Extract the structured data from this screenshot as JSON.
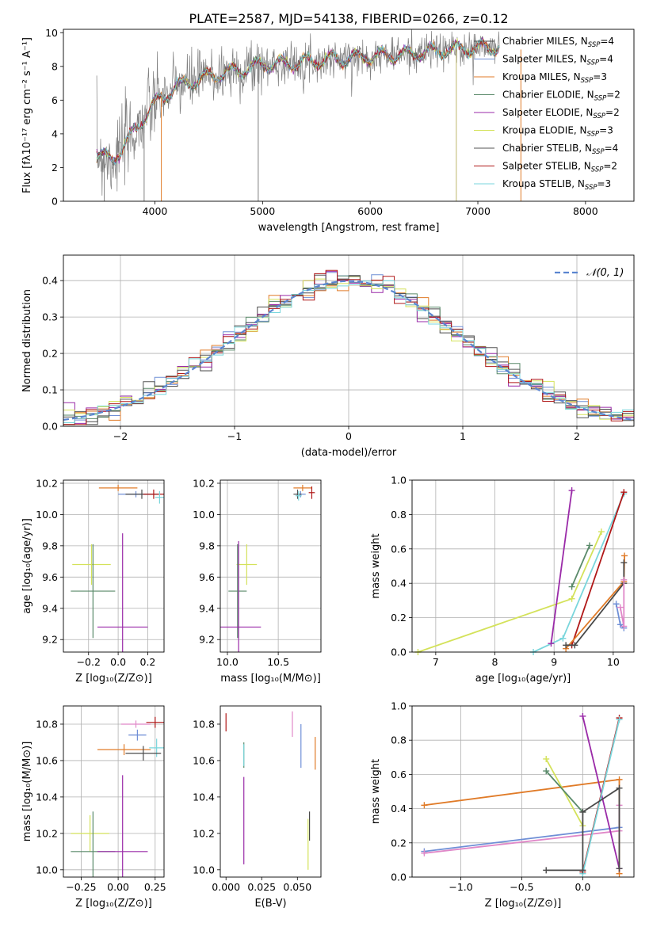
{
  "figure": {
    "title": "PLATE=2587, MJD=54138, FIBERID=0266, z=0.12"
  },
  "models": [
    {
      "key": "CM",
      "name": "Chabrier MILES, N_SSP=4",
      "label_main": "Chabrier MILES, N",
      "label_sub": "SSP",
      "label_end": "=4",
      "color": "#4a4a4a"
    },
    {
      "key": "SM",
      "name": "Salpeter MILES, N_SSP=4",
      "label_main": "Salpeter MILES, N",
      "label_sub": "SSP",
      "label_end": "=4",
      "color": "#6f8fd6"
    },
    {
      "key": "KM",
      "name": "Kroupa MILES, N_SSP=3",
      "label_main": "Kroupa MILES, N",
      "label_sub": "SSP",
      "label_end": "=3",
      "color": "#e07b28"
    },
    {
      "key": "CE",
      "name": "Chabrier ELODIE, N_SSP=2",
      "label_main": "Chabrier ELODIE, N",
      "label_sub": "SSP",
      "label_end": "=2",
      "color": "#5a8a6a"
    },
    {
      "key": "SE",
      "name": "Salpeter ELODIE, N_SSP=2",
      "label_main": "Salpeter ELODIE, N",
      "label_sub": "SSP",
      "label_end": "=2",
      "color": "#9a2aa8"
    },
    {
      "key": "KE",
      "name": "Kroupa ELODIE, N_SSP=3",
      "label_main": "Kroupa ELODIE, N",
      "label_sub": "SSP",
      "label_end": "=3",
      "color": "#d4e25a"
    },
    {
      "key": "CS",
      "name": "Chabrier STELIB, N_SSP=4",
      "label_main": "Chabrier STELIB, N",
      "label_sub": "SSP",
      "label_end": "=4",
      "color": "#555555"
    },
    {
      "key": "SS",
      "name": "Salpeter STELIB, N_SSP=2",
      "label_main": "Salpeter STELIB, N",
      "label_sub": "SSP",
      "label_end": "=2",
      "color": "#b01818"
    },
    {
      "key": "KS",
      "name": "Kroupa STELIB, N_SSP=3",
      "label_main": "Kroupa STELIB, N",
      "label_sub": "SSP",
      "label_end": "=3",
      "color": "#7ad6dc"
    }
  ],
  "chart_data": [
    {
      "id": "spectrum",
      "type": "line",
      "xlabel": "wavelength [Angstrom, rest frame]",
      "ylabel": "Flux [fλ10⁻¹⁷ erg cm⁻² s⁻¹ A⁻¹]",
      "xlim": [
        3150,
        8450
      ],
      "ylim": [
        0,
        10.2
      ],
      "xticks": [
        4000,
        5000,
        6000,
        7000,
        8000
      ],
      "yticks": [
        0,
        2,
        4,
        6,
        8,
        10
      ],
      "grid": false,
      "legend": "upper-right",
      "data_color": "#808080",
      "continuum_points": {
        "x": [
          3460,
          3600,
          3750,
          3900,
          4000,
          4200,
          4500,
          4800,
          5000,
          5300,
          5600,
          6000,
          6300,
          6600,
          7000,
          7200
        ],
        "y": [
          2.9,
          2.4,
          3.6,
          5.0,
          5.8,
          6.8,
          7.4,
          7.8,
          8.1,
          8.2,
          8.4,
          8.6,
          8.7,
          8.9,
          9.1,
          9.1
        ]
      },
      "model_x_range": [
        3460,
        7200
      ]
    },
    {
      "id": "residuals",
      "type": "line",
      "xlabel": "(data-model)/error",
      "ylabel": "Normed distribution",
      "xlim": [
        -2.5,
        2.5
      ],
      "ylim": [
        0,
        0.47
      ],
      "xticks": [
        -2,
        -1,
        0,
        1,
        2
      ],
      "yticks": [
        0.0,
        0.1,
        0.2,
        0.3,
        0.4
      ],
      "grid": true,
      "legend": "upper-right",
      "reference": {
        "name": "𝒩(0, 1)",
        "color": "#5b85d0"
      },
      "bin_width": 0.1
    },
    {
      "id": "z-age",
      "type": "scatter",
      "xlabel": "Z [log₁₀(Z/Z⊙)]",
      "ylabel": "age  [log₁₀(age/yr)]",
      "xlim": [
        -0.37,
        0.31
      ],
      "ylim": [
        9.12,
        10.22
      ],
      "xticks": [
        -0.2,
        0.0,
        0.2
      ],
      "yticks": [
        9.2,
        9.4,
        9.6,
        9.8,
        10.0,
        10.2
      ],
      "grid": true,
      "errorbars": [
        {
          "model": "KM",
          "x": 0.0,
          "y": 10.17,
          "xerr": 0.13,
          "yerr": 0.02
        },
        {
          "model": "SM",
          "x": 0.12,
          "y": 10.13,
          "xerr": 0.12,
          "yerr": 0.02
        },
        {
          "model": "CM",
          "x": 0.16,
          "y": 10.13,
          "xerr": 0.11,
          "yerr": 0.03
        },
        {
          "model": "SS",
          "x": 0.24,
          "y": 10.13,
          "xerr": 0.07,
          "yerr": 0.03
        },
        {
          "model": "KS",
          "x": 0.28,
          "y": 10.11,
          "xerr": 0.03,
          "yerr": 0.04
        },
        {
          "model": "KE",
          "x": -0.18,
          "y": 9.68,
          "xerr": 0.13,
          "yerr": 0.13
        },
        {
          "model": "CE",
          "x": -0.17,
          "y": 9.51,
          "xerr": 0.15,
          "yerr": 0.3
        },
        {
          "model": "SE",
          "x": 0.03,
          "y": 9.28,
          "xerr": 0.17,
          "yerr": 0.6
        }
      ]
    },
    {
      "id": "mass-age",
      "type": "scatter",
      "xlabel": "mass [log₁₀(M/M⊙)]",
      "ylabel": "",
      "xlim": [
        9.93,
        10.92
      ],
      "ylim": [
        9.12,
        10.22
      ],
      "xticks": [
        10.0,
        10.5
      ],
      "yticks": [
        9.2,
        9.4,
        9.6,
        9.8,
        10.0,
        10.2
      ],
      "grid": true,
      "errorbars": [
        {
          "model": "KM",
          "x": 10.74,
          "y": 10.17,
          "xerr": 0.09,
          "yerr": 0.02
        },
        {
          "model": "SM",
          "x": 10.72,
          "y": 10.13,
          "xerr": 0.05,
          "yerr": 0.02
        },
        {
          "model": "CS",
          "x": 10.69,
          "y": 10.13,
          "xerr": 0.04,
          "yerr": 0.03
        },
        {
          "model": "SS",
          "x": 10.83,
          "y": 10.14,
          "xerr": 0.03,
          "yerr": 0.04
        },
        {
          "model": "KS",
          "x": 10.7,
          "y": 10.12,
          "xerr": 0.03,
          "yerr": 0.03
        },
        {
          "model": "KE",
          "x": 10.19,
          "y": 9.68,
          "xerr": 0.1,
          "yerr": 0.13
        },
        {
          "model": "CE",
          "x": 10.1,
          "y": 9.51,
          "xerr": 0.09,
          "yerr": 0.3
        },
        {
          "model": "SE",
          "x": 10.11,
          "y": 9.28,
          "xerr": 0.22,
          "yerr": 0.55
        }
      ]
    },
    {
      "id": "age-weight",
      "type": "line",
      "xlabel": "age  [log₁₀(age/yr)]",
      "ylabel": "mass weight",
      "xlim": [
        6.6,
        10.35
      ],
      "ylim": [
        0,
        1.0
      ],
      "xticks": [
        7,
        8,
        9,
        10
      ],
      "yticks": [
        0.0,
        0.2,
        0.4,
        0.6,
        0.8,
        1.0
      ],
      "grid": true,
      "series": [
        {
          "model": "KE",
          "x": [
            6.7,
            9.3,
            9.8
          ],
          "y": [
            0.0,
            0.31,
            0.7
          ]
        },
        {
          "model": "KS",
          "x": [
            8.65,
            9.15,
            10.18
          ],
          "y": [
            0.0,
            0.08,
            0.92
          ]
        },
        {
          "model": "CE",
          "x": [
            9.3,
            9.6
          ],
          "y": [
            0.38,
            0.62
          ]
        },
        {
          "model": "SE",
          "x": [
            8.95,
            9.3
          ],
          "y": [
            0.05,
            0.94
          ]
        },
        {
          "model": "SS",
          "x": [
            9.3,
            10.18
          ],
          "y": [
            0.04,
            0.93
          ]
        },
        {
          "model": "KM",
          "x": [
            9.2,
            10.18,
            10.19
          ],
          "y": [
            0.02,
            0.41,
            0.56
          ]
        },
        {
          "model": "CM",
          "x": [
            9.2,
            9.35,
            10.18,
            10.18
          ],
          "y": [
            0.04,
            0.04,
            0.4,
            0.52
          ]
        },
        {
          "model": "SM",
          "x": [
            10.05,
            10.12,
            10.18
          ],
          "y": [
            0.28,
            0.16,
            0.14
          ]
        },
        {
          "model": "SM2",
          "color": "#e088c8",
          "x": [
            10.12,
            10.18,
            10.18
          ],
          "y": [
            0.26,
            0.15,
            0.42
          ]
        }
      ]
    },
    {
      "id": "z-mass",
      "type": "scatter",
      "xlabel": "Z [log₁₀(Z/Z⊙)]",
      "ylabel": "mass [log₁₀(M/M⊙)]",
      "xlim": [
        -0.37,
        0.31
      ],
      "ylim": [
        9.96,
        10.9
      ],
      "xticks": [
        -0.25,
        0.0,
        0.25
      ],
      "yticks": [
        10.0,
        10.2,
        10.4,
        10.6,
        10.8
      ],
      "grid": true,
      "errorbars": [
        {
          "model": "SS",
          "x": 0.25,
          "y": 10.81,
          "xerr": 0.06,
          "yerr": 0.03
        },
        {
          "model": "SM2",
          "color": "#e088c8",
          "x": 0.12,
          "y": 10.8,
          "xerr": 0.1,
          "yerr": 0.02
        },
        {
          "model": "SM",
          "x": 0.13,
          "y": 10.74,
          "xerr": 0.06,
          "yerr": 0.03
        },
        {
          "model": "KS",
          "x": 0.26,
          "y": 10.67,
          "xerr": 0.05,
          "yerr": 0.05
        },
        {
          "model": "KM",
          "x": 0.04,
          "y": 10.66,
          "xerr": 0.18,
          "yerr": 0.03
        },
        {
          "model": "CM",
          "x": 0.17,
          "y": 10.64,
          "xerr": 0.12,
          "yerr": 0.04
        },
        {
          "model": "KE",
          "x": -0.19,
          "y": 10.2,
          "xerr": 0.13,
          "yerr": 0.1
        },
        {
          "model": "CE",
          "x": -0.17,
          "y": 10.1,
          "xerr": 0.15,
          "yerr": 0.22
        },
        {
          "model": "SE",
          "x": 0.03,
          "y": 10.1,
          "xerr": 0.17,
          "yerr": 0.42
        }
      ]
    },
    {
      "id": "ebv-mass",
      "type": "scatter",
      "xlabel": "E(B-V)",
      "ylabel": "",
      "xlim": [
        -0.004,
        0.0665
      ],
      "ylim": [
        9.96,
        10.9
      ],
      "xticks": [
        0.0,
        0.025,
        0.05
      ],
      "yticks": [
        10.0,
        10.2,
        10.4,
        10.6,
        10.8
      ],
      "grid": false,
      "errorbars": [
        {
          "model": "SS",
          "x": 0.0,
          "y": 10.81,
          "xerr": 0,
          "yerr": 0.05
        },
        {
          "model": "CE",
          "x": 0.0125,
          "y": 10.63,
          "xerr": 0,
          "yerr": 0.07
        },
        {
          "model": "KS",
          "x": 0.0125,
          "y": 10.63,
          "xerr": 0,
          "yerr": 0.06
        },
        {
          "model": "SE",
          "x": 0.0125,
          "y": 10.27,
          "xerr": 0,
          "yerr": 0.24
        },
        {
          "model": "SM2",
          "color": "#e088c8",
          "x": 0.0465,
          "y": 10.8,
          "xerr": 0,
          "yerr": 0.07
        },
        {
          "model": "SM",
          "x": 0.0525,
          "y": 10.68,
          "xerr": 0,
          "yerr": 0.12
        },
        {
          "model": "KM",
          "x": 0.0625,
          "y": 10.64,
          "xerr": 0,
          "yerr": 0.09
        },
        {
          "model": "CM",
          "x": 0.0585,
          "y": 10.24,
          "xerr": 0,
          "yerr": 0.08
        },
        {
          "model": "KE",
          "x": 0.0575,
          "y": 10.14,
          "xerr": 0,
          "yerr": 0.14
        }
      ]
    },
    {
      "id": "z-weight",
      "type": "line",
      "xlabel": "Z [log₁₀(Z/Z⊙)]",
      "ylabel": "mass weight",
      "xlim": [
        -1.4,
        0.42
      ],
      "ylim": [
        0,
        1.0
      ],
      "xticks": [
        -1.0,
        -0.5,
        0.0
      ],
      "yticks": [
        0.0,
        0.2,
        0.4,
        0.6,
        0.8,
        1.0
      ],
      "grid": true,
      "series": [
        {
          "model": "KM",
          "x": [
            -1.3,
            0.3,
            0.3
          ],
          "y": [
            0.42,
            0.57,
            0.02
          ]
        },
        {
          "model": "SM",
          "x": [
            -1.3,
            0.3
          ],
          "y": [
            0.15,
            0.29
          ]
        },
        {
          "model": "SM2",
          "color": "#e088c8",
          "x": [
            -1.3,
            0.3,
            0.3
          ],
          "y": [
            0.14,
            0.27,
            0.42
          ]
        },
        {
          "model": "SE",
          "x": [
            0.0,
            0.3
          ],
          "y": [
            0.94,
            0.05
          ]
        },
        {
          "model": "SS",
          "x": [
            0.0,
            0.3
          ],
          "y": [
            0.03,
            0.93
          ]
        },
        {
          "model": "KS",
          "x": [
            0.0,
            0.3
          ],
          "y": [
            0.02,
            0.92
          ]
        },
        {
          "model": "KE",
          "x": [
            -0.3,
            0.0
          ],
          "y": [
            0.69,
            0.3
          ]
        },
        {
          "model": "CE",
          "x": [
            -0.3,
            0.0
          ],
          "y": [
            0.62,
            0.38
          ]
        },
        {
          "model": "CM",
          "x": [
            -0.3,
            0.0,
            0.0,
            0.3,
            0.3
          ],
          "y": [
            0.04,
            0.04,
            0.38,
            0.52,
            0.05
          ]
        }
      ]
    }
  ]
}
